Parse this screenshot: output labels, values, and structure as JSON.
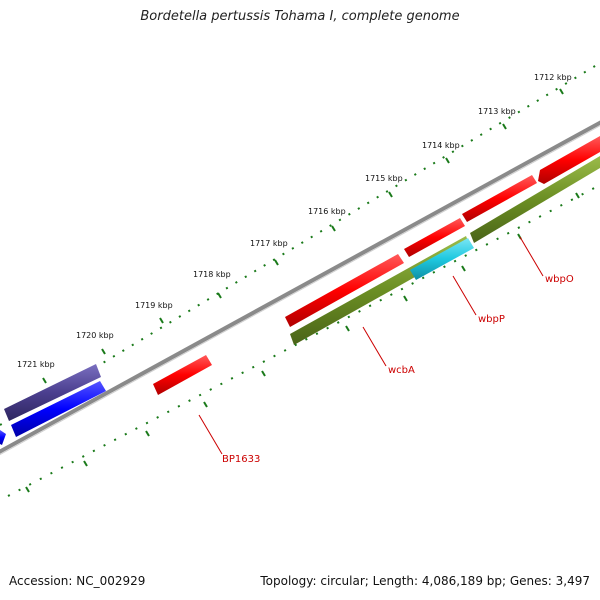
{
  "title": "Bordetella pertussis Tohama I, complete genome",
  "footer": {
    "accession": "Accession: NC_002929",
    "summary": "Topology: circular; Length: 4,086,189 bp; Genes: 3,497"
  },
  "scale_ticks": [
    "1712 kbp",
    "1713 kbp",
    "1714 kbp",
    "1715 kbp",
    "1716 kbp",
    "1717 kbp",
    "1718 kbp",
    "1719 kbp",
    "1720 kbp",
    "1721 kbp"
  ],
  "gene_labels": [
    "wbpO",
    "wbpP",
    "wcbA",
    "BP1633"
  ],
  "colors": {
    "forward_cds": "#ff0000",
    "reverse_cds": "#6b8e23",
    "cyan_feature": "#1ec8e0",
    "blue_feature": "#0000ff",
    "purple_feature": "#4b3f8f",
    "backbone": "#8a8a8a",
    "scale_dots": "#1a7a1a",
    "label_red": "#cc0000"
  }
}
